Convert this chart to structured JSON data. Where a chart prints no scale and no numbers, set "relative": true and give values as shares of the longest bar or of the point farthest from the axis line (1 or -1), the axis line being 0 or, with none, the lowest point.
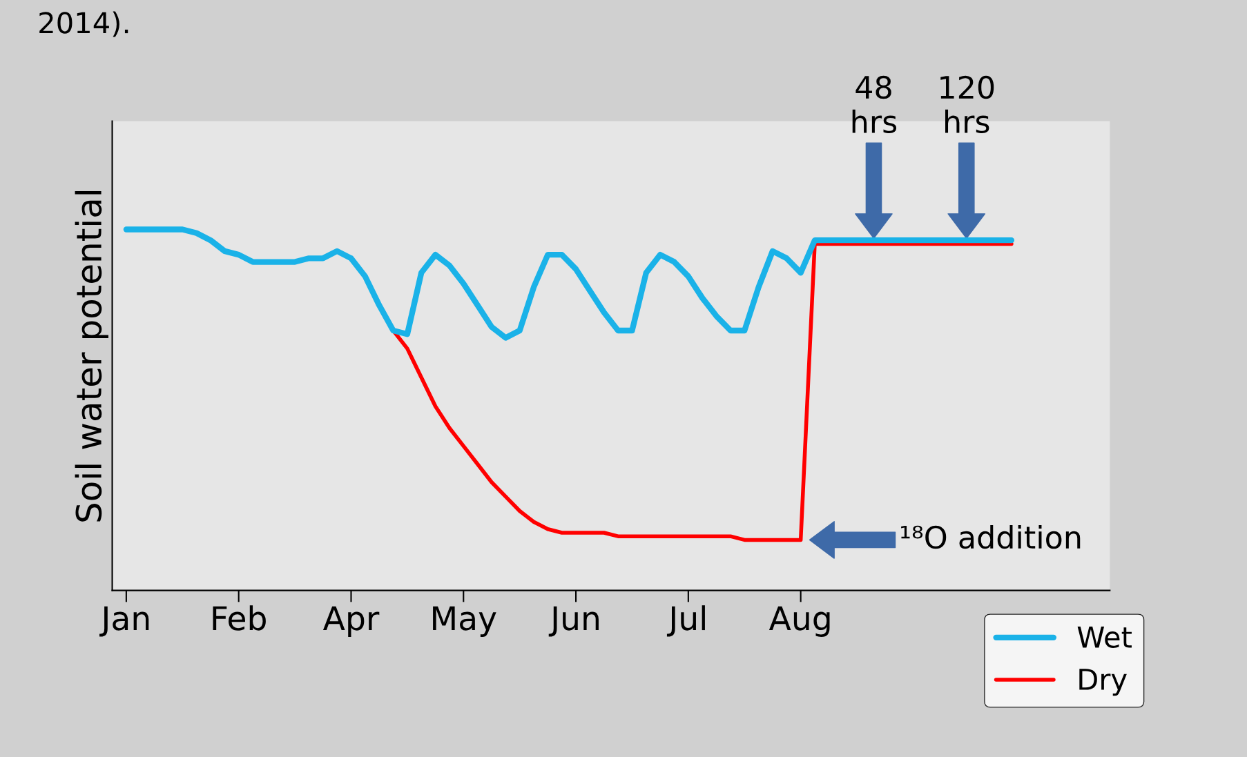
{
  "chart_data": {
    "type": "line",
    "relative": true,
    "ylabel": "Soil water potential",
    "tick_labels": "x",
    "legend": "bottom right",
    "categories": [
      "Jan",
      null,
      null,
      null,
      null,
      null,
      null,
      null,
      "Feb",
      null,
      null,
      null,
      null,
      null,
      null,
      null,
      "Apr",
      null,
      null,
      null,
      null,
      null,
      null,
      null,
      "May",
      null,
      null,
      null,
      null,
      null,
      null,
      null,
      "Jun",
      null,
      null,
      null,
      null,
      null,
      null,
      null,
      "Jul",
      null,
      null,
      null,
      null,
      null,
      null,
      null,
      "Aug",
      null,
      null,
      null,
      null,
      null,
      null,
      null,
      null,
      null,
      null,
      null,
      null,
      null,
      null,
      null
    ],
    "series": [
      {
        "name": "Dry",
        "color": "#ff0000",
        "values": [
          null,
          null,
          null,
          null,
          null,
          null,
          null,
          null,
          null,
          null,
          null,
          null,
          null,
          null,
          null,
          null,
          null,
          null,
          null,
          0.72,
          0.67,
          0.59,
          0.51,
          0.45,
          0.4,
          0.35,
          0.3,
          0.26,
          0.22,
          0.19,
          0.17,
          0.16,
          0.16,
          0.16,
          0.16,
          0.15,
          0.15,
          0.15,
          0.15,
          0.15,
          0.15,
          0.15,
          0.15,
          0.15,
          0.14,
          0.14,
          0.14,
          0.14,
          0.14,
          0.96,
          0.96,
          0.96,
          0.96,
          0.96,
          0.96,
          0.96,
          0.96,
          0.96,
          0.96,
          0.96,
          0.96,
          0.96,
          0.96,
          0.96
        ]
      },
      {
        "name": "Wet",
        "color": "#1ab2e8",
        "values": [
          1.0,
          1.0,
          1.0,
          1.0,
          1.0,
          0.99,
          0.97,
          0.94,
          0.93,
          0.91,
          0.91,
          0.91,
          0.91,
          0.92,
          0.92,
          0.94,
          0.92,
          0.87,
          0.79,
          0.72,
          0.71,
          0.88,
          0.93,
          0.9,
          0.85,
          0.79,
          0.73,
          0.7,
          0.72,
          0.84,
          0.93,
          0.93,
          0.89,
          0.83,
          0.77,
          0.72,
          0.72,
          0.88,
          0.93,
          0.91,
          0.87,
          0.81,
          0.76,
          0.72,
          0.72,
          0.84,
          0.94,
          0.92,
          0.88,
          0.97,
          0.97,
          0.97,
          0.97,
          0.97,
          0.97,
          0.97,
          0.97,
          0.97,
          0.97,
          0.97,
          0.97,
          0.97,
          0.97,
          0.97
        ]
      }
    ],
    "annotations": [
      "2014).",
      "48\nhrs",
      "120\nhrs",
      "¹⁸O addition"
    ]
  }
}
